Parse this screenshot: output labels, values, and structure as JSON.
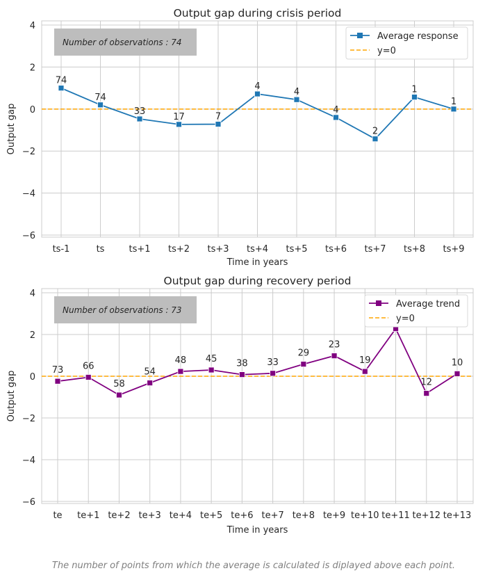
{
  "chart_data": [
    {
      "type": "line",
      "title": "Output gap during crisis period",
      "xlabel": "Time in years",
      "ylabel": "Output gap",
      "categories": [
        "ts-1",
        "ts",
        "ts+1",
        "ts+2",
        "ts+3",
        "ts+4",
        "ts+5",
        "ts+6",
        "ts+7",
        "ts+8",
        "ts+9"
      ],
      "ylim": [
        -6.1,
        4.2
      ],
      "yticks": [
        4,
        2,
        0,
        -2,
        -4,
        -6
      ],
      "ytick_labels": [
        "4",
        "2",
        "0",
        "−2",
        "−4",
        "−6"
      ],
      "grid": true,
      "annotation": "Number of observations : 74",
      "legend_position": "top-right",
      "series": [
        {
          "name": "Average response",
          "color": "#1f77b4",
          "marker": "square",
          "values": [
            1.0,
            0.2,
            -0.47,
            -0.73,
            -0.72,
            0.72,
            0.45,
            -0.4,
            -1.42,
            0.57,
            0.0
          ],
          "point_labels": [
            "74",
            "74",
            "33",
            "17",
            "7",
            "4",
            "4",
            "4",
            "2",
            "1",
            "1"
          ]
        }
      ],
      "reference_line": {
        "name": "y=0",
        "value": 0,
        "color": "#ffa500",
        "style": "dashed"
      }
    },
    {
      "type": "line",
      "title": "Output gap during recovery period",
      "xlabel": "Time in years",
      "ylabel": "Output gap",
      "categories": [
        "te",
        "te+1",
        "te+2",
        "te+3",
        "te+4",
        "te+5",
        "te+6",
        "te+7",
        "te+8",
        "te+9",
        "te+10",
        "te+11",
        "te+12",
        "te+13"
      ],
      "ylim": [
        -6.1,
        4.2
      ],
      "yticks": [
        4,
        2,
        0,
        -2,
        -4,
        -6
      ],
      "ytick_labels": [
        "4",
        "2",
        "0",
        "−2",
        "−4",
        "−6"
      ],
      "grid": true,
      "annotation": "Number of observations : 73",
      "legend_position": "top-right",
      "series": [
        {
          "name": "Average trend",
          "color": "#800080",
          "marker": "square",
          "values": [
            -0.24,
            -0.05,
            -0.9,
            -0.32,
            0.23,
            0.3,
            0.08,
            0.14,
            0.58,
            0.98,
            0.23,
            2.28,
            -0.82,
            0.12
          ],
          "point_labels": [
            "73",
            "66",
            "58",
            "54",
            "48",
            "45",
            "38",
            "33",
            "29",
            "23",
            "19",
            "",
            "12",
            "10"
          ]
        }
      ],
      "reference_line": {
        "name": "y=0",
        "value": 0,
        "color": "#ffa500",
        "style": "dashed"
      }
    }
  ],
  "footnote": "The number of points from which the average is calculated is diplayed above each point."
}
